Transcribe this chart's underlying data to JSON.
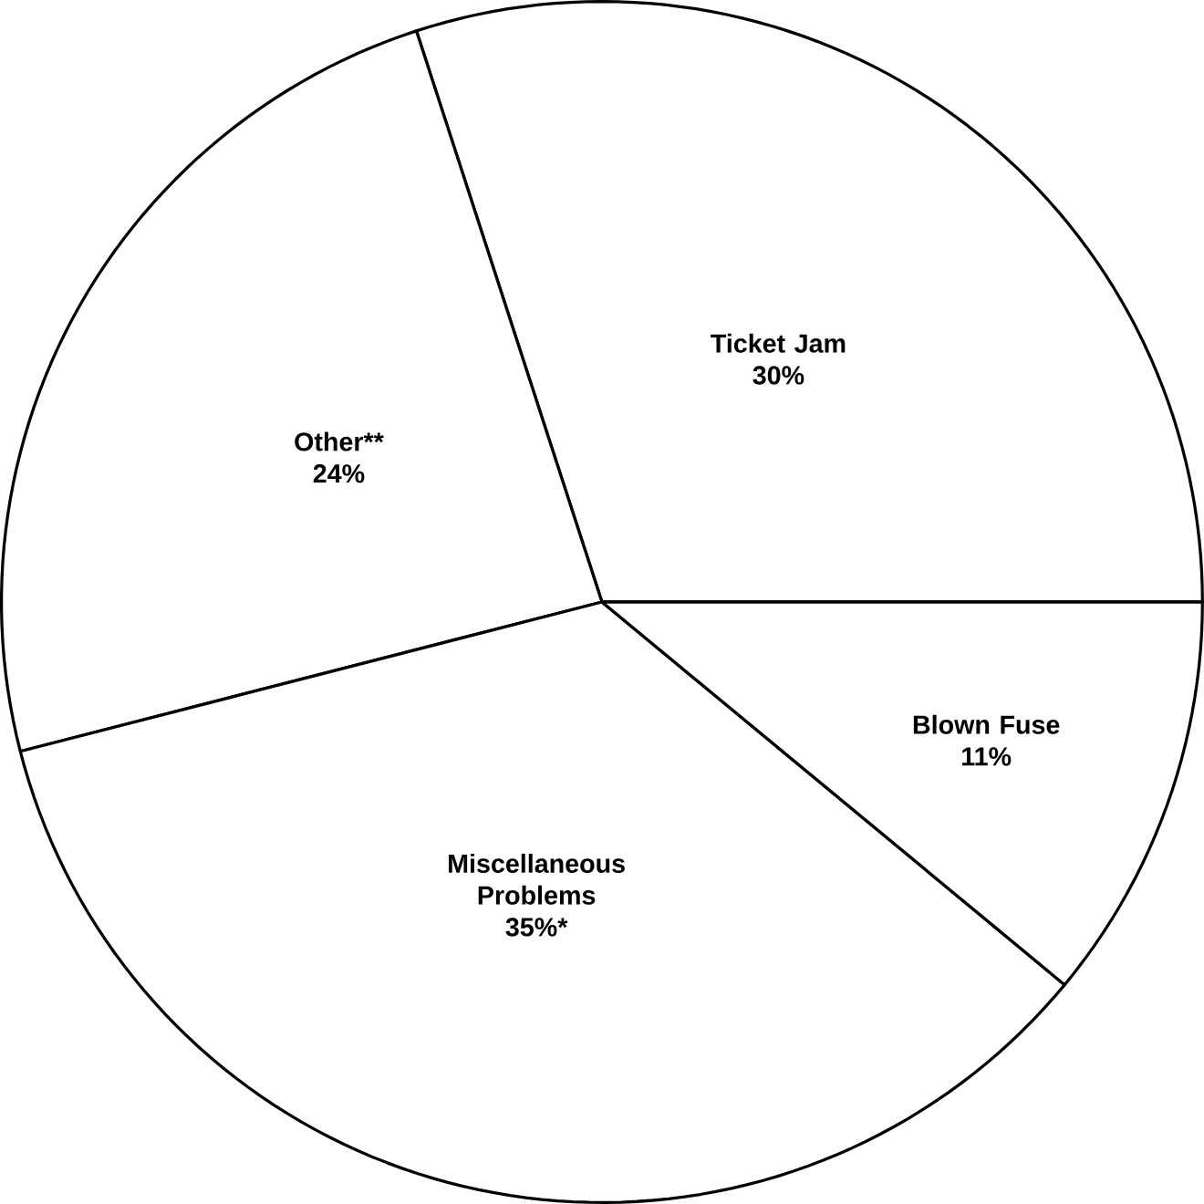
{
  "chart_data": {
    "type": "pie",
    "categories": [
      "Ticket Jam",
      "Other**",
      "Miscellaneous Problems",
      "Blown Fuse"
    ],
    "values": [
      30,
      24,
      35,
      11
    ],
    "colors": [
      "#ffffff",
      "#ffffff",
      "#ffffff",
      "#ffffff"
    ],
    "value_labels": [
      "30%",
      "24%",
      "35%*",
      "11%"
    ]
  }
}
